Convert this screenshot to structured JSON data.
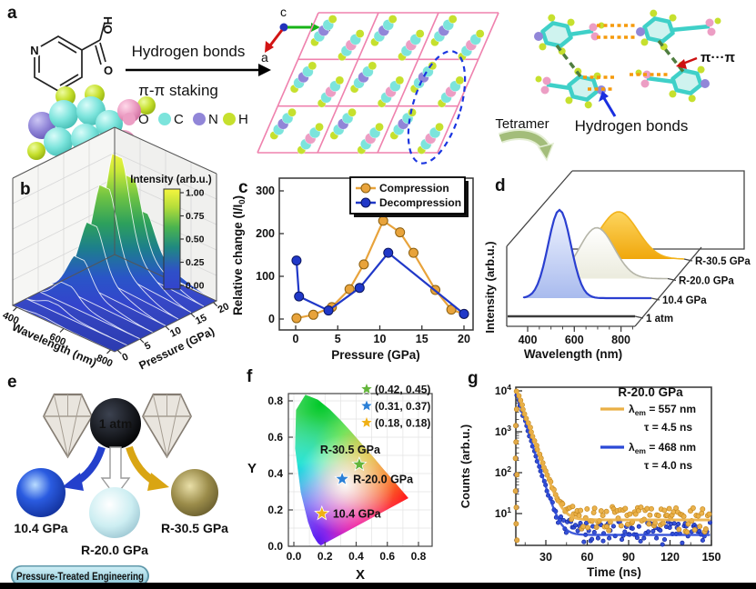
{
  "panel_labels": {
    "a": "a",
    "b": "b",
    "c": "c",
    "d": "d",
    "e": "e",
    "f": "f",
    "g": "g"
  },
  "panel_a": {
    "reaction_top": "Hydrogen bonds",
    "reaction_bottom": "π-π staking",
    "skeletal": {
      "n": "N",
      "ho": "HO",
      "o": "O"
    },
    "atom_legend": [
      {
        "symbol": "O",
        "color": "#ec9ec4"
      },
      {
        "symbol": "C",
        "color": "#7ce4dc"
      },
      {
        "symbol": "N",
        "color": "#9186d8"
      },
      {
        "symbol": "H",
        "color": "#c6e02e"
      }
    ],
    "crystal_axes": {
      "a": "a",
      "b": "b",
      "c": "c"
    },
    "tetramer_label": "Tetramer",
    "pi_pi_label": "π···π",
    "hbond_label": "Hydrogen bonds"
  },
  "panel_e": {
    "capsule_label": "1 atm",
    "spheres": [
      {
        "label": "10.4 GPa",
        "color": "#1d52e0"
      },
      {
        "label": "R-20.0 GPa",
        "color": "#cdeef2"
      },
      {
        "label": "R-30.5 GPa",
        "color": "#8f8140"
      }
    ],
    "banner": "Pressure-Treated Engineering"
  },
  "chart_data": [
    {
      "id": "b",
      "type": "surface3d",
      "xlabel": "Wavelength (nm)",
      "x_ticks": [
        400,
        600,
        800
      ],
      "ylabel": "Pressure (GPa)",
      "y_ticks": [
        0,
        5,
        10,
        15,
        20
      ],
      "colorbar": {
        "title": "Intensity (arb.u.)",
        "ticks": [
          "1.00",
          "0.75",
          "0.50",
          "0.25",
          "0.00"
        ]
      },
      "surface": {
        "peak_wavelength_nm": 510,
        "ridge_pressures_gpa": [
          20,
          17.5,
          15,
          12.5,
          10,
          7.5,
          5,
          2.5,
          0
        ],
        "ridge_relative_intensity": [
          0.45,
          0.78,
          1.0,
          0.8,
          0.55,
          0.33,
          0.17,
          0.07,
          0.02
        ]
      }
    },
    {
      "id": "c",
      "type": "line",
      "xlabel": "Pressure (GPa)",
      "ylabel": "Relative change (I/I0)",
      "ylabel_parts": [
        "Relative change (I/I",
        "0",
        ")"
      ],
      "x_ticks": [
        0,
        5,
        10,
        15,
        20
      ],
      "y_ticks": [
        0,
        100,
        200,
        300
      ],
      "xlim": [
        -2,
        21.5
      ],
      "ylim": [
        -28,
        345
      ],
      "series": [
        {
          "name": "Compression",
          "color": "#E8A33B",
          "x": [
            0.1,
            2.1,
            4.3,
            6.4,
            8.1,
            10.4,
            12.4,
            14.0,
            16.6,
            18.5,
            20.0
          ],
          "y": [
            2,
            10,
            28,
            70,
            128,
            230,
            203,
            155,
            68,
            22,
            12
          ]
        },
        {
          "name": "Decompression",
          "color": "#2038C8",
          "x": [
            20.0,
            11.0,
            7.6,
            3.9,
            0.4,
            0.1
          ],
          "y": [
            12,
            155,
            73,
            20,
            53,
            137
          ]
        }
      ]
    },
    {
      "id": "d",
      "type": "waterfall",
      "xlabel": "Wavelength (nm)",
      "x_ticks": [
        400,
        600,
        800
      ],
      "ylabel": "Intensity (arb.u.)",
      "spectra": [
        {
          "label": "1 atm",
          "peak_nm": null,
          "rel_intensity": 0,
          "color": "#3b3b3b"
        },
        {
          "label": "10.4 GPa",
          "peak_nm": 468,
          "rel_intensity": 1.0,
          "color": "#2a3fd0"
        },
        {
          "label": "R-20.0 GPa",
          "peak_nm": 530,
          "rel_intensity": 0.58,
          "color": "#b5b5a8"
        },
        {
          "label": "R-30.5 GPa",
          "peak_nm": 557,
          "rel_intensity": 0.54,
          "color": "#f2b31c"
        }
      ]
    },
    {
      "id": "f",
      "type": "scatter",
      "xlabel": "X",
      "ylabel": "Y",
      "x_ticks": [
        "0.0",
        "0.2",
        "0.4",
        "0.6",
        "0.8"
      ],
      "y_ticks": [
        "0.0",
        "0.2",
        "0.4",
        "0.6",
        "0.8"
      ],
      "xlim": [
        0,
        0.8
      ],
      "ylim": [
        0,
        0.8
      ],
      "points": [
        {
          "label": "R-30.5 GPa",
          "x": 0.42,
          "y": 0.45,
          "color": "#63b53a",
          "coord_text": "(0.42, 0.45)",
          "label_pos": "above"
        },
        {
          "label": "R-20.0 GPa",
          "x": 0.31,
          "y": 0.37,
          "color": "#2a7fd6",
          "coord_text": "(0.31, 0.37)",
          "label_pos": "right"
        },
        {
          "label": "10.4 GPa",
          "x": 0.18,
          "y": 0.18,
          "color": "#f0b015",
          "coord_text": "(0.18, 0.18)",
          "label_pos": "right"
        }
      ]
    },
    {
      "id": "g",
      "type": "decay_log",
      "title": "R-20.0 GPa",
      "xlabel": "Time (ns)",
      "ylabel": "Counts (arb.u.)",
      "x_ticks": [
        30,
        60,
        90,
        120,
        150
      ],
      "y_tick_base": "10",
      "y_tick_exponents": [
        1,
        2,
        3,
        4
      ],
      "time_range_ns": [
        9,
        150
      ],
      "series": [
        {
          "lambda_parts": [
            "λ",
            "em",
            " = 557 nm"
          ],
          "tau_text": "τ = 4.5 ns",
          "color": "#EAAF45",
          "tau_ns": 4.5,
          "amplitude": 10000,
          "baseline": 7
        },
        {
          "lambda_parts": [
            "λ",
            "em",
            " = 468 nm"
          ],
          "tau_text": "τ = 4.0 ns",
          "color": "#2B49D6",
          "tau_ns": 4.0,
          "amplitude": 8000,
          "baseline": 3
        }
      ]
    }
  ]
}
